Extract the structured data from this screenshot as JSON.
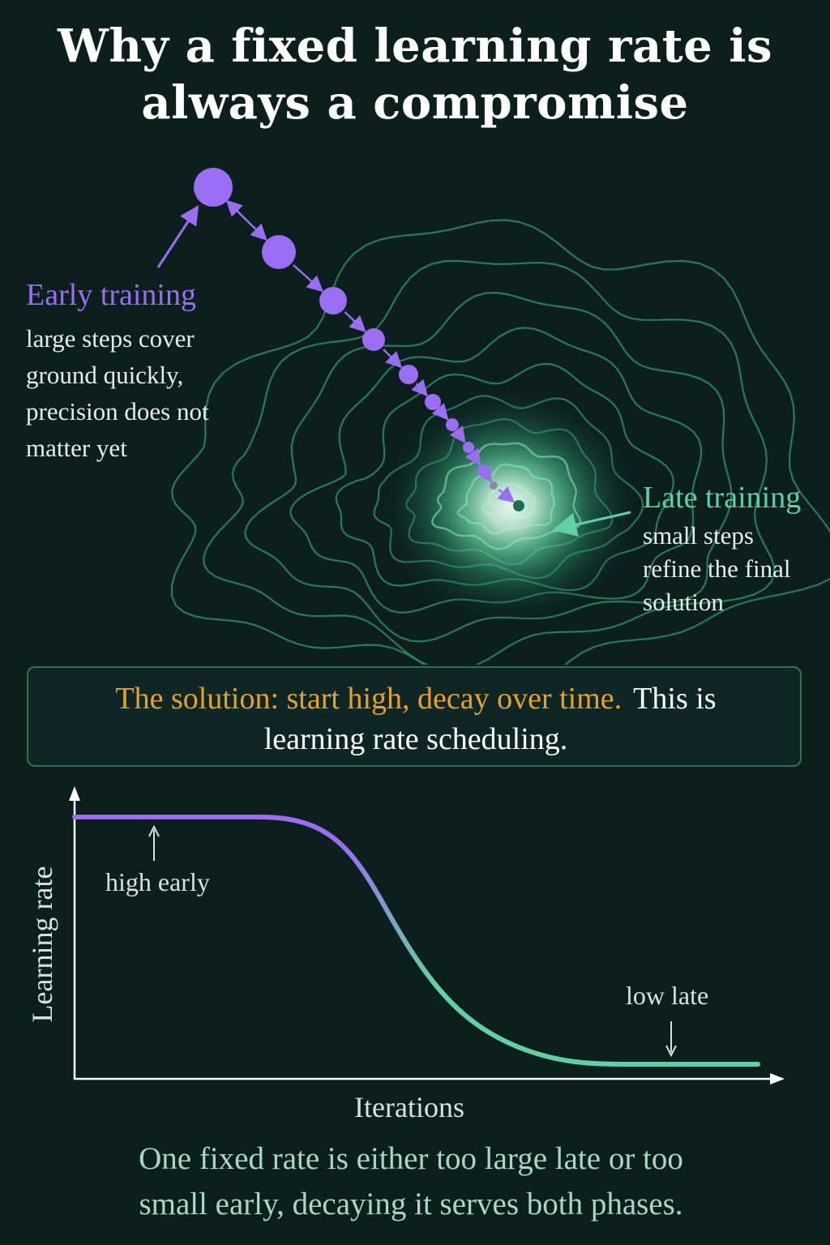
{
  "title": {
    "line1": "Why a fixed learning rate is",
    "line2": "always a compromise"
  },
  "early": {
    "heading": "Early training",
    "body": [
      "large steps cover",
      "ground quickly,",
      "precision does not",
      "matter yet"
    ]
  },
  "late": {
    "heading": "Late training",
    "body": [
      "small steps",
      "refine the final",
      "solution"
    ]
  },
  "solution": {
    "highlight": "The solution: start high, decay over time.",
    "rest_line1": "This is",
    "line2": "learning rate scheduling."
  },
  "chart": {
    "ylabel": "Learning rate",
    "xlabel": "Iterations",
    "note_high": "high early",
    "note_low": "low late"
  },
  "footer": [
    "One fixed rate is either too large late or too",
    "small early, decaying it serves both phases."
  ],
  "colors": {
    "background": "#0b1f1d",
    "early_purple": "#9b6df2",
    "late_green": "#5fd1a4",
    "highlight_orange": "#e8a02a",
    "contour": "#2f8a68"
  }
}
